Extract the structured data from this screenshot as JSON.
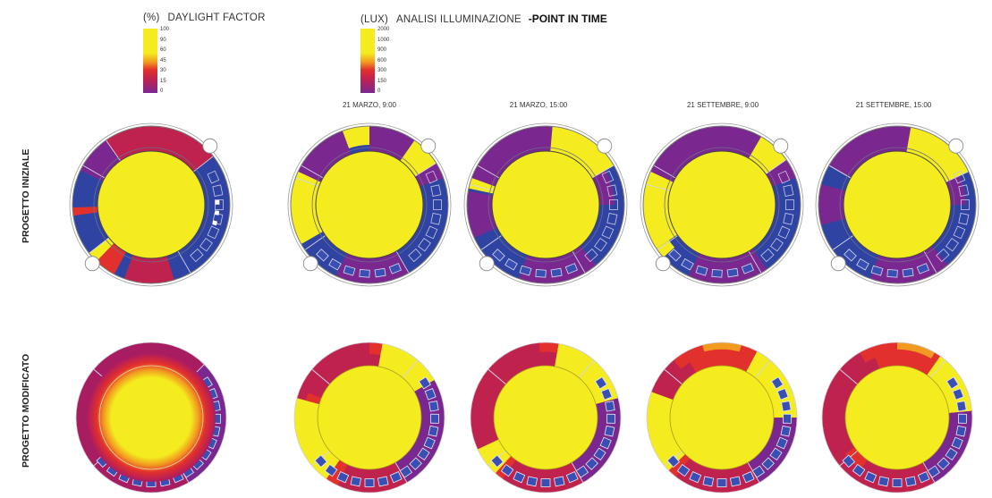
{
  "legend_df": {
    "unit": "(%)",
    "title": "DAYLIGHT FACTOR",
    "ticks": [
      "100",
      "90",
      "60",
      "45",
      "30",
      "15",
      "0"
    ]
  },
  "legend_lux": {
    "unit": "(LUX)",
    "title": "ANALISI ILLUMINAZIONE",
    "subtitle": "-POINT IN TIME",
    "ticks": [
      "2000",
      "1000",
      "900",
      "600",
      "300",
      "150",
      "0"
    ]
  },
  "columns": [
    "21 MARZO, 9:00",
    "21 MARZO, 15:00",
    "21 SETTEMBRE, 9:00",
    "21 SETTEMBRE, 15:00"
  ],
  "rows": [
    "PROGETTO INIZIALE",
    "PROGETTO MODIFICATO"
  ],
  "palette": {
    "yellow": "#f4ec1f",
    "orange": "#f29a20",
    "red": "#e2302c",
    "crimson": "#c0224e",
    "magenta": "#a81c62",
    "purple": "#7b2790",
    "blue": "#2f44a2",
    "box_blue": "#3a4fb4",
    "outline": "#444444"
  }
}
